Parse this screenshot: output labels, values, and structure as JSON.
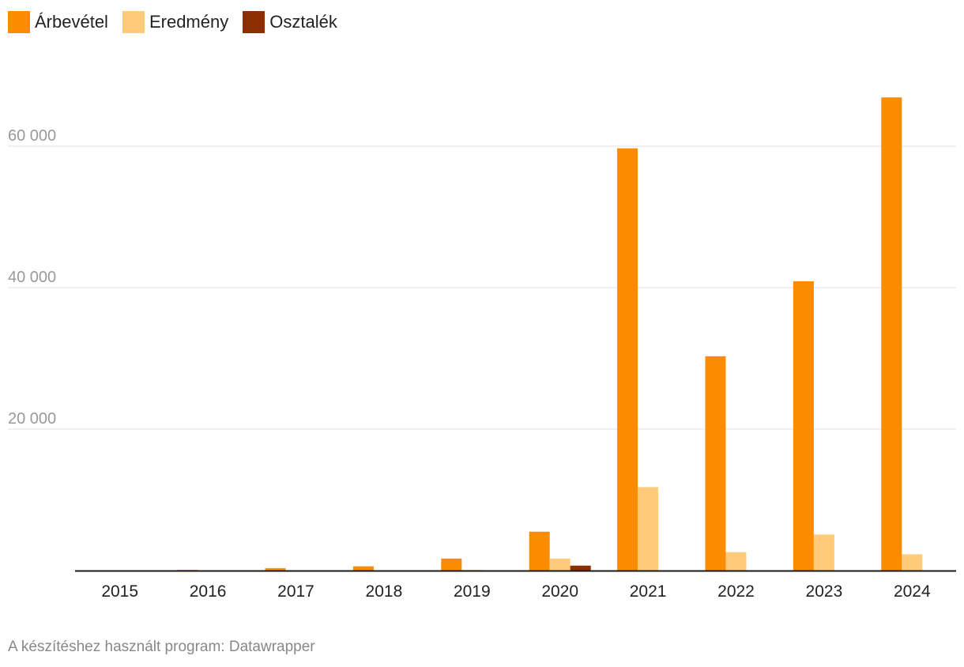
{
  "chart_data": {
    "type": "bar",
    "title": "",
    "xlabel": "",
    "ylabel": "",
    "ylim": [
      0,
      70000
    ],
    "yticks": [
      20000,
      40000,
      60000
    ],
    "ytick_labels": [
      "20 000",
      "40 000",
      "60 000"
    ],
    "grid": true,
    "legend_placement": "top-left",
    "categories": [
      "2015",
      "2016",
      "2017",
      "2018",
      "2019",
      "2020",
      "2021",
      "2022",
      "2023",
      "2024"
    ],
    "series": [
      {
        "name": "Árbevétel",
        "color": "#fb8c00",
        "values": [
          0,
          100,
          350,
          600,
          1700,
          5500,
          59700,
          30300,
          40900,
          66900
        ]
      },
      {
        "name": "Eredmény",
        "color": "#ffca7a",
        "values": [
          0,
          0,
          0,
          0,
          100,
          1700,
          11800,
          2600,
          5100,
          2300
        ]
      },
      {
        "name": "Osztalék",
        "color": "#8b2e00",
        "values": [
          0,
          0,
          0,
          0,
          0,
          700,
          0,
          0,
          0,
          0
        ]
      }
    ]
  },
  "footer": "A készítéshez használt program: Datawrapper"
}
